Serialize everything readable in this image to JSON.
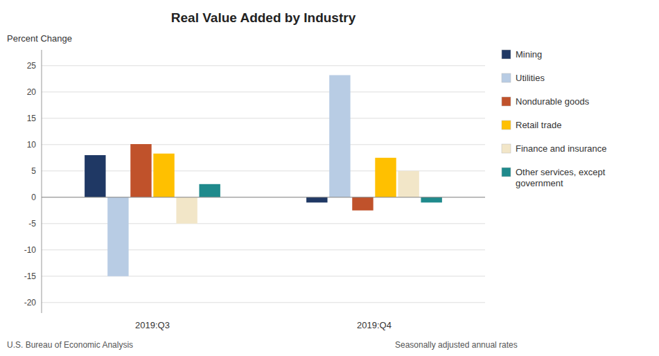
{
  "chart_data": {
    "type": "bar",
    "title": "Real Value Added by Industry",
    "y_label": "Percent Change",
    "categories": [
      "2019:Q3",
      "2019:Q4"
    ],
    "series": [
      {
        "name": "Mining",
        "color": "#1F3864",
        "values": [
          8.0,
          -1.0
        ]
      },
      {
        "name": "Utilities",
        "color": "#B8CCE4",
        "values": [
          -15.0,
          23.2
        ]
      },
      {
        "name": "Nondurable goods",
        "color": "#C0522B",
        "values": [
          10.1,
          -2.5
        ]
      },
      {
        "name": "Retail trade",
        "color": "#FFC000",
        "values": [
          8.3,
          7.5
        ]
      },
      {
        "name": "Finance and insurance",
        "color": "#F2E6C8",
        "values": [
          -5.0,
          5.0
        ]
      },
      {
        "name": "Other services, except\ngovernment",
        "color": "#1F8A8C",
        "values": [
          2.5,
          -1.0
        ]
      }
    ],
    "ylim": [
      -22,
      28
    ],
    "yticks": [
      -20,
      -15,
      -10,
      -5,
      0,
      5,
      10,
      15,
      20,
      25
    ],
    "grid": true,
    "legend": "right",
    "annotations": [
      "U.S. Bureau of Economic Analysis",
      "Seasonally adjusted annual rates"
    ]
  }
}
